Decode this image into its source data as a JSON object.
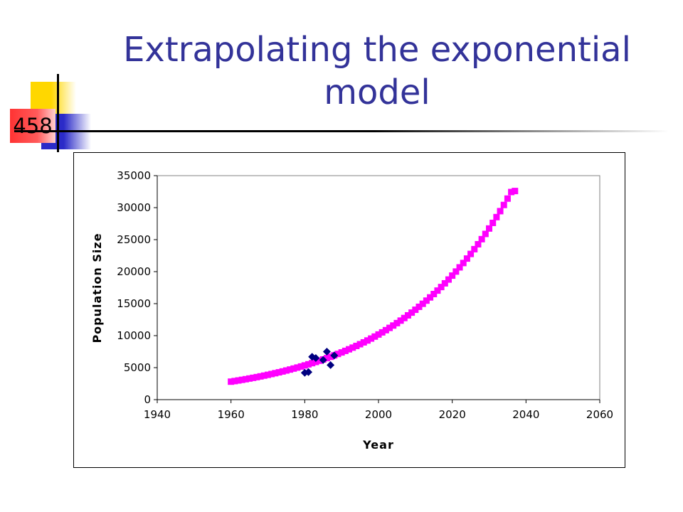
{
  "slide": {
    "number": "458",
    "title_line1": "Extrapolating the exponential",
    "title_line2": "model"
  },
  "colors": {
    "title": "#333399",
    "model_series": "#ff00ff",
    "observed_series": "#000080",
    "accent_yellow": "#ffd700",
    "accent_blue": "#2b2bc8",
    "accent_red": "#ff3333"
  },
  "chart_data": {
    "type": "scatter",
    "title": "",
    "xlabel": "Year",
    "ylabel": "Population Size",
    "xlim": [
      1940,
      2060
    ],
    "ylim": [
      0,
      35000
    ],
    "xticks": [
      1940,
      1960,
      1980,
      2000,
      2020,
      2040,
      2060
    ],
    "yticks": [
      0,
      5000,
      10000,
      15000,
      20000,
      25000,
      30000,
      35000
    ],
    "grid": false,
    "legend": "none",
    "series": [
      {
        "marker": "square",
        "color": "#ff00ff",
        "x": [
          1960,
          1961,
          1962,
          1963,
          1964,
          1965,
          1966,
          1967,
          1968,
          1969,
          1970,
          1971,
          1972,
          1973,
          1974,
          1975,
          1976,
          1977,
          1978,
          1979,
          1980,
          1981,
          1982,
          1983,
          1984,
          1985,
          1986,
          1987,
          1988,
          1989,
          1990,
          1991,
          1992,
          1993,
          1994,
          1995,
          1996,
          1997,
          1998,
          1999,
          2000,
          2001,
          2002,
          2003,
          2004,
          2005,
          2006,
          2007,
          2008,
          2009,
          2010,
          2011,
          2012,
          2013,
          2014,
          2015,
          2016,
          2017,
          2018,
          2019,
          2020,
          2021,
          2022,
          2023,
          2024,
          2025,
          2026,
          2027,
          2028,
          2029,
          2030,
          2031,
          2032,
          2033,
          2034,
          2035,
          2036,
          2037
        ],
        "y": [
          2810,
          2902,
          2997,
          3095,
          3196,
          3301,
          3409,
          3520,
          3635,
          3754,
          3877,
          4004,
          4135,
          4270,
          4409,
          4553,
          4702,
          4856,
          5015,
          5179,
          5348,
          5523,
          5704,
          5890,
          6083,
          6282,
          6487,
          6699,
          6919,
          7145,
          7378,
          7620,
          7869,
          8126,
          8392,
          8666,
          8950,
          9243,
          9545,
          9857,
          10180,
          10513,
          10857,
          11212,
          11579,
          11958,
          12349,
          12753,
          13170,
          13601,
          14046,
          14506,
          14980,
          15471,
          15977,
          16500,
          17039,
          17597,
          18173,
          18767,
          19381,
          20015,
          20670,
          21347,
          22045,
          22766,
          23511,
          24281,
          25075,
          25895,
          26742,
          27617,
          28521,
          29454,
          30418,
          31413,
          32441,
          32600
        ]
      },
      {
        "marker": "diamond",
        "color": "#000080",
        "x": [
          1980,
          1981,
          1982,
          1983,
          1985,
          1986,
          1987,
          1988
        ],
        "y": [
          4200,
          4300,
          6700,
          6500,
          6200,
          7500,
          5400,
          6900
        ]
      }
    ]
  }
}
